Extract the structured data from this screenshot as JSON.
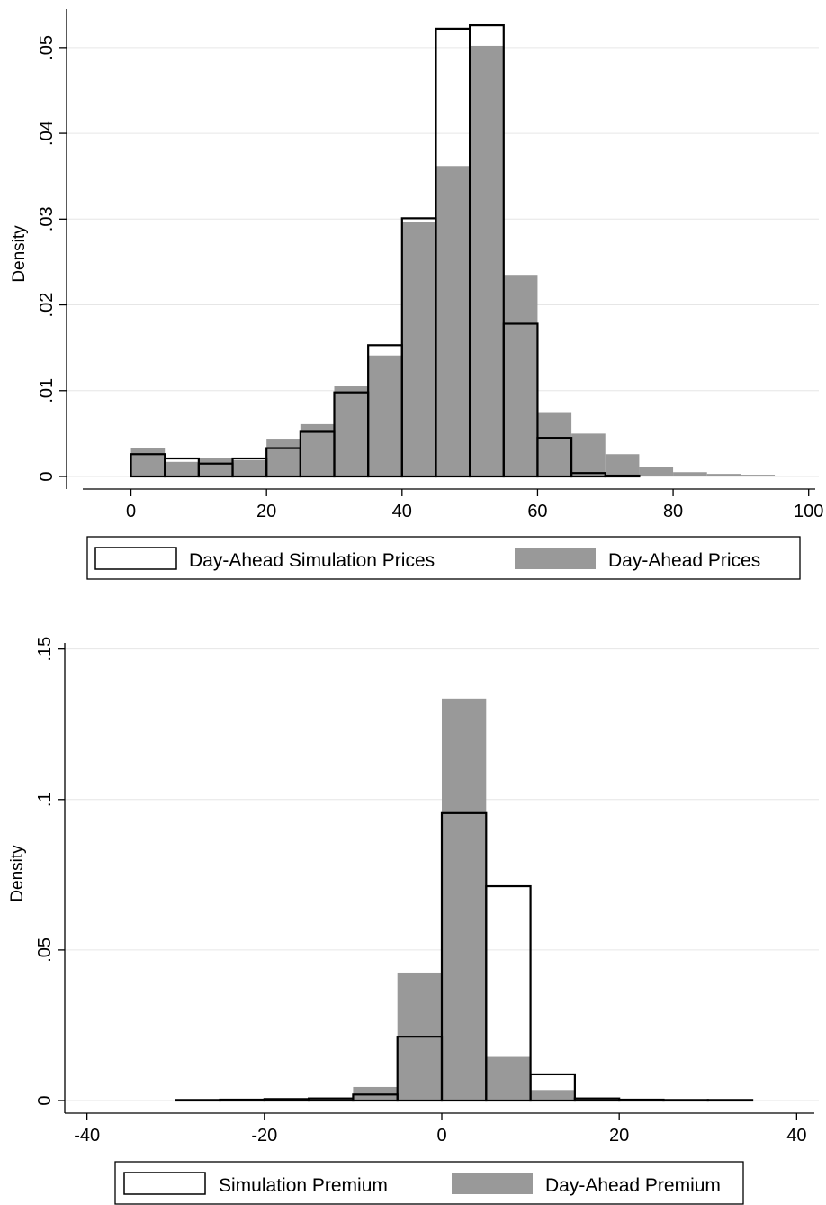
{
  "colors": {
    "gray_fill": "#999999",
    "outline": "#000000",
    "grid": "#e6e6e6",
    "background": "#ffffff"
  },
  "chart_data": [
    {
      "type": "bar",
      "subtype": "overlaid-histogram",
      "title": "",
      "xlabel": "",
      "ylabel": "Density",
      "xlim": [
        -5,
        102
      ],
      "ylim": [
        0,
        0.0545
      ],
      "x_ticks": [
        0,
        20,
        40,
        60,
        80,
        100
      ],
      "x_tick_labels": [
        "0",
        "20",
        "40",
        "60",
        "80",
        "100"
      ],
      "y_ticks": [
        0,
        0.01,
        0.02,
        0.03,
        0.04,
        0.05
      ],
      "y_tick_labels": [
        "0",
        ".01",
        ".02",
        ".03",
        ".04",
        ".05"
      ],
      "bin_width": 5,
      "grid": true,
      "legend_position": "bottom",
      "series": [
        {
          "name": "Day-Ahead Prices",
          "style": "filled-gray",
          "bins": [
            0,
            5,
            10,
            15,
            20,
            25,
            30,
            35,
            40,
            45,
            50,
            55,
            60,
            65,
            70,
            75,
            80,
            85,
            90
          ],
          "values": [
            0.0033,
            0.0017,
            0.0021,
            0.0019,
            0.0043,
            0.0061,
            0.0105,
            0.0141,
            0.0297,
            0.0362,
            0.0502,
            0.0235,
            0.0074,
            0.005,
            0.0026,
            0.0011,
            0.0005,
            0.0003,
            0.0002
          ]
        },
        {
          "name": "Day-Ahead Simulation Prices",
          "style": "outline",
          "bins": [
            0,
            5,
            10,
            15,
            20,
            25,
            30,
            35,
            40,
            45,
            50,
            55,
            60,
            65,
            70
          ],
          "values": [
            0.0026,
            0.0021,
            0.0015,
            0.0021,
            0.0033,
            0.0052,
            0.0098,
            0.0153,
            0.0301,
            0.0522,
            0.0526,
            0.0178,
            0.0045,
            0.0004,
            0.0001
          ]
        }
      ]
    },
    {
      "type": "bar",
      "subtype": "overlaid-histogram",
      "title": "",
      "xlabel": "",
      "ylabel": "Density",
      "xlim": [
        -42,
        42
      ],
      "ylim": [
        0,
        0.152
      ],
      "x_ticks": [
        -40,
        -20,
        0,
        20,
        40
      ],
      "x_tick_labels": [
        "-40",
        "-20",
        "0",
        "20",
        "40"
      ],
      "y_ticks": [
        0,
        0.05,
        0.1,
        0.15
      ],
      "y_tick_labels": [
        "0",
        ".05",
        ".1",
        ".15"
      ],
      "bin_width": 5,
      "grid": true,
      "legend_position": "bottom",
      "series": [
        {
          "name": "Day-Ahead Premium",
          "style": "filled-gray",
          "bins": [
            -30,
            -25,
            -20,
            -15,
            -10,
            -5,
            0,
            5,
            10,
            15,
            20,
            25,
            30
          ],
          "values": [
            0.0002,
            0.0002,
            0.0002,
            0.0004,
            0.0045,
            0.0425,
            0.1335,
            0.0145,
            0.0035,
            0.0007,
            0.0004,
            0.0002,
            0.0001
          ]
        },
        {
          "name": "Simulation Premium",
          "style": "outline",
          "bins": [
            -30,
            -25,
            -20,
            -15,
            -10,
            -5,
            0,
            5,
            10,
            15,
            20,
            25,
            30
          ],
          "values": [
            0.0002,
            0.0003,
            0.0005,
            0.0007,
            0.002,
            0.0212,
            0.0955,
            0.0712,
            0.0087,
            0.0007,
            0.0003,
            0.0002,
            0.0002
          ]
        }
      ]
    }
  ]
}
